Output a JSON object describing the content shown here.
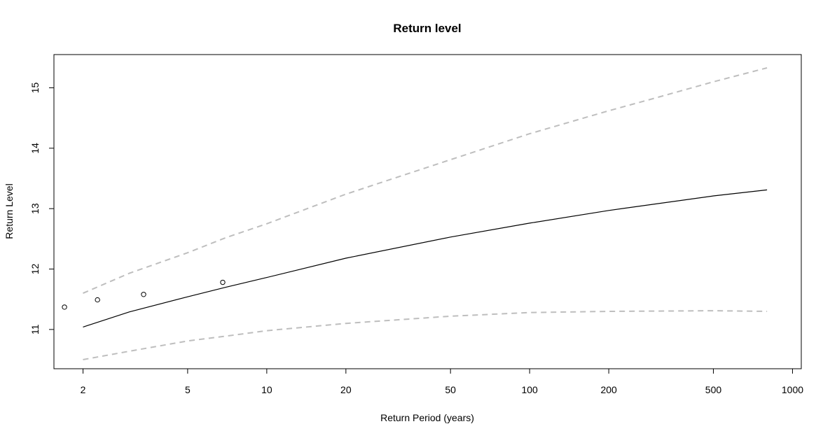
{
  "chart_data": {
    "type": "line",
    "title": "Return level",
    "xlabel": "Return Period (years)",
    "ylabel": "Return Level",
    "x_scale": "log",
    "xlim": [
      1.55,
      1080
    ],
    "ylim": [
      10.35,
      15.55
    ],
    "x_ticks": [
      2,
      5,
      10,
      20,
      50,
      100,
      200,
      500,
      1000
    ],
    "x_tick_labels": [
      "2",
      "5",
      "10",
      "20",
      "50",
      "100",
      "200",
      "500",
      "1000"
    ],
    "y_ticks": [
      11,
      12,
      13,
      14,
      15
    ],
    "y_tick_labels": [
      "11",
      "12",
      "13",
      "14",
      "15"
    ],
    "grid": false,
    "legend": "none",
    "series": [
      {
        "style": "solid",
        "color": "#000000",
        "x": [
          2,
          3,
          5,
          7,
          10,
          20,
          50,
          100,
          200,
          500,
          800
        ],
        "y": [
          11.04,
          11.29,
          11.54,
          11.7,
          11.86,
          12.18,
          12.53,
          12.76,
          12.97,
          13.21,
          13.31
        ]
      },
      {
        "style": "dashed",
        "color": "#bebebe",
        "x": [
          2,
          3,
          5,
          7,
          10,
          20,
          50,
          100,
          200,
          300,
          500,
          800
        ],
        "y": [
          11.6,
          11.93,
          12.27,
          12.52,
          12.75,
          13.24,
          13.81,
          14.24,
          14.62,
          14.83,
          15.1,
          15.33
        ]
      },
      {
        "style": "dashed",
        "color": "#bebebe",
        "x": [
          2,
          3,
          5,
          7,
          10,
          20,
          50,
          100,
          200,
          500,
          800
        ],
        "y": [
          10.5,
          10.64,
          10.81,
          10.89,
          10.98,
          11.1,
          11.22,
          11.28,
          11.3,
          11.31,
          11.3
        ]
      },
      {
        "style": "points",
        "color": "#000000",
        "x": [
          1.7,
          2.27,
          3.4,
          6.8
        ],
        "y": [
          11.37,
          11.49,
          11.58,
          11.78
        ]
      }
    ]
  }
}
